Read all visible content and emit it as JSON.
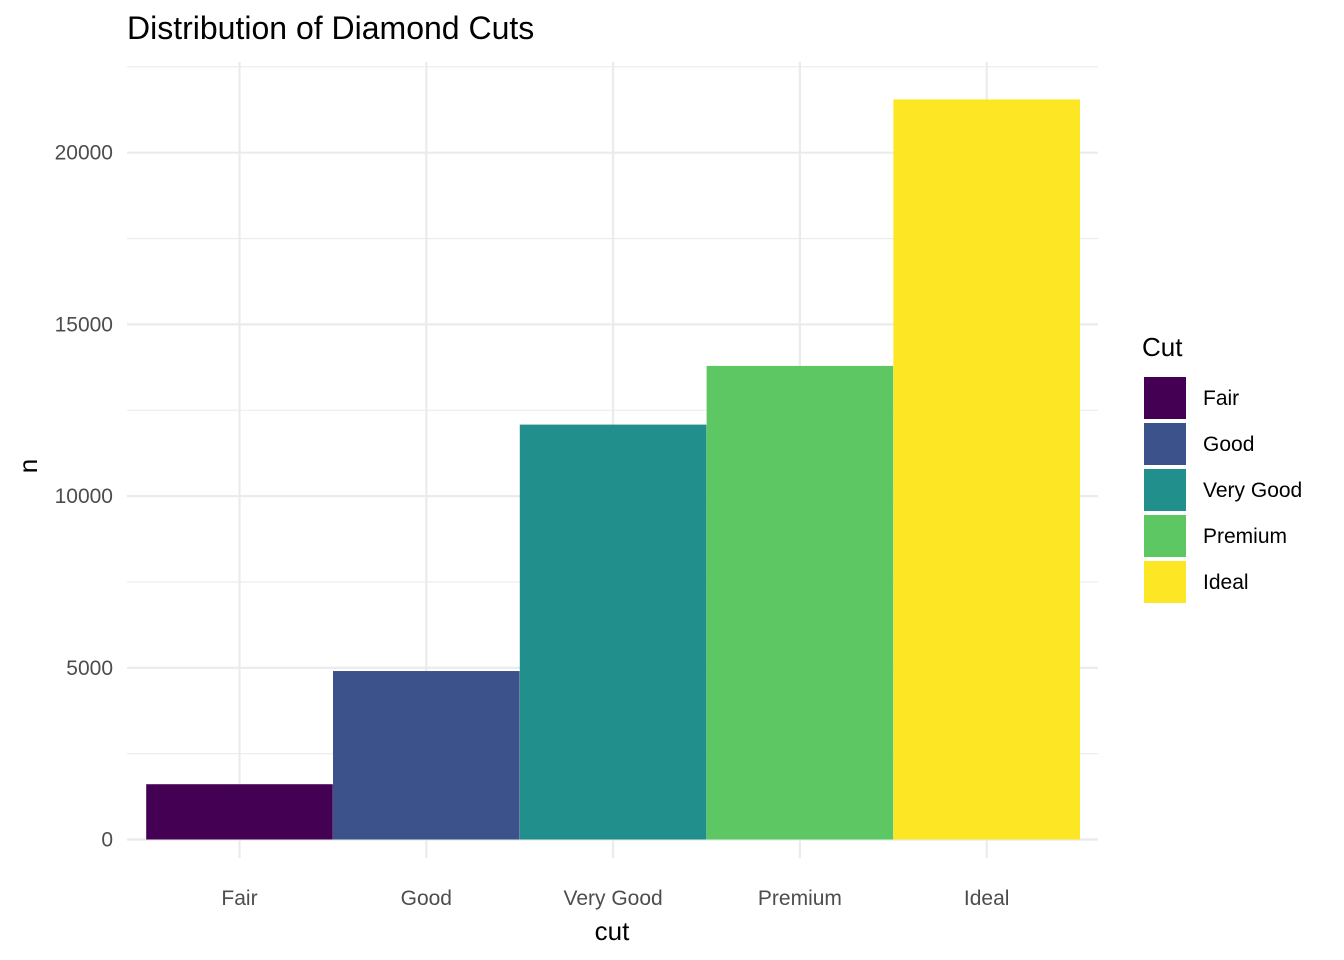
{
  "chart_data": {
    "type": "bar",
    "title": "Distribution of Diamond Cuts",
    "xlabel": "cut",
    "ylabel": "n",
    "categories": [
      "Fair",
      "Good",
      "Very Good",
      "Premium",
      "Ideal"
    ],
    "values": [
      1610,
      4906,
      12082,
      13791,
      21551
    ],
    "colors": [
      "#440154",
      "#3B528B",
      "#21908C",
      "#5DC863",
      "#FDE725"
    ],
    "ylim": [
      0,
      22500
    ],
    "yticks": [
      0,
      5000,
      10000,
      15000,
      20000
    ],
    "ytick_labels": [
      "0",
      "5000",
      "10000",
      "15000",
      "20000"
    ],
    "grid": true,
    "legend": {
      "title": "Cut",
      "position": "right",
      "entries": [
        "Fair",
        "Good",
        "Very Good",
        "Premium",
        "Ideal"
      ]
    }
  }
}
